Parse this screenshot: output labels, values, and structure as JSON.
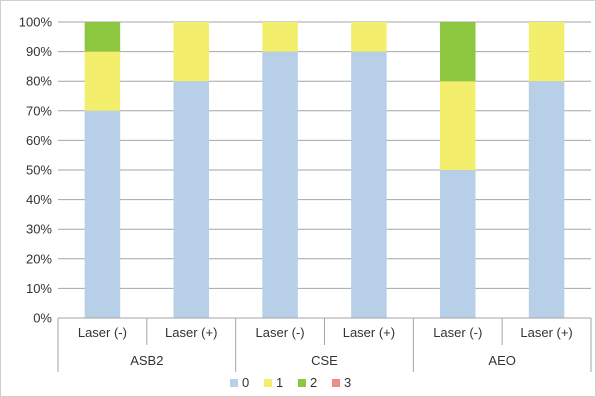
{
  "chart_data": {
    "type": "bar",
    "stacked": true,
    "percent": true,
    "title": "",
    "xlabel": "",
    "ylabel": "",
    "ylim": [
      0,
      100
    ],
    "yticks": [
      "0%",
      "10%",
      "20%",
      "30%",
      "40%",
      "50%",
      "60%",
      "70%",
      "80%",
      "90%",
      "100%"
    ],
    "grid": true,
    "legend_position": "bottom",
    "groups": [
      {
        "label": "ASB2",
        "categories": [
          "Laser (-)",
          "Laser (+)"
        ]
      },
      {
        "label": "CSE",
        "categories": [
          "Laser (-)",
          "Laser (+)"
        ]
      },
      {
        "label": "AEO",
        "categories": [
          "Laser (-)",
          "Laser (+)"
        ]
      }
    ],
    "categories": [
      "Laser (-)",
      "Laser (+)",
      "Laser (-)",
      "Laser (+)",
      "Laser (-)",
      "Laser (+)"
    ],
    "series": [
      {
        "name": "0",
        "color": "#b8cfe8",
        "values": [
          70,
          80,
          90,
          90,
          50,
          80
        ]
      },
      {
        "name": "1",
        "color": "#f3ef6d",
        "values": [
          20,
          20,
          10,
          10,
          30,
          20
        ]
      },
      {
        "name": "2",
        "color": "#8dc63f",
        "values": [
          10,
          0,
          0,
          0,
          20,
          0
        ]
      },
      {
        "name": "3",
        "color": "#f28a8a",
        "values": [
          0,
          0,
          0,
          0,
          0,
          0
        ]
      }
    ]
  }
}
